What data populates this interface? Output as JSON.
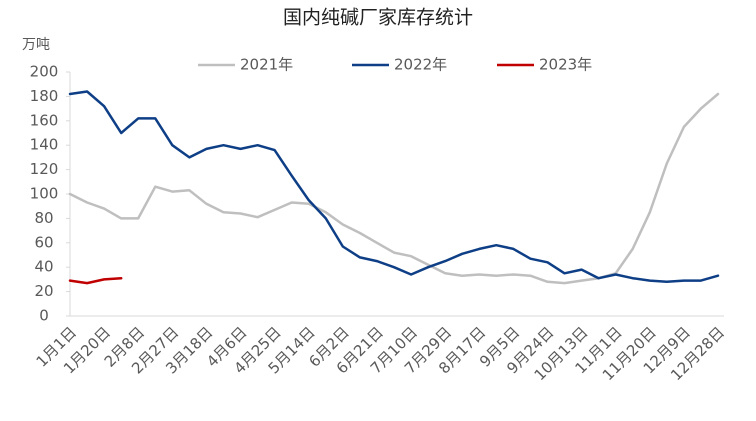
{
  "chart_data": {
    "type": "line",
    "title": "国内纯碱厂家库存统计",
    "y_label": "万吨",
    "categories": [
      "1月1日",
      null,
      "1月20日",
      null,
      "2月8日",
      null,
      "2月27日",
      null,
      "3月18日",
      null,
      "4月6日",
      null,
      "4月25日",
      null,
      "5月14日",
      null,
      "6月2日",
      null,
      "6月21日",
      null,
      "7月10日",
      null,
      "7月29日",
      null,
      "8月17日",
      null,
      "9月5日",
      null,
      "9月24日",
      null,
      "10月13日",
      null,
      "11月1日",
      null,
      "11月20日",
      null,
      "12月9日",
      null,
      "12月28日"
    ],
    "series": [
      {
        "name": "2021年",
        "color": "#bfbfbf",
        "values": [
          100,
          93,
          88,
          80,
          80,
          106,
          102,
          103,
          92,
          85,
          84,
          81,
          87,
          93,
          92,
          85,
          75,
          68,
          60,
          52,
          49,
          42,
          35,
          33,
          34,
          33,
          34,
          33,
          28,
          27,
          29,
          31,
          35,
          55,
          85,
          125,
          155,
          170,
          182
        ]
      },
      {
        "name": "2022年",
        "color": "#0e3f86",
        "values": [
          182,
          184,
          172,
          150,
          162,
          162,
          140,
          130,
          137,
          140,
          137,
          140,
          136,
          115,
          95,
          80,
          57,
          48,
          45,
          40,
          34,
          40,
          45,
          51,
          55,
          58,
          55,
          47,
          44,
          35,
          38,
          31,
          34,
          31,
          29,
          28,
          29,
          29,
          33
        ]
      },
      {
        "name": "2023年",
        "color": "#c00000",
        "values": [
          29,
          27,
          30,
          31,
          null,
          null,
          null,
          null,
          null,
          null,
          null,
          null,
          null,
          null,
          null,
          null,
          null,
          null,
          null,
          null,
          null,
          null,
          null,
          null,
          null,
          null,
          null,
          null,
          null,
          null,
          null,
          null,
          null,
          null,
          null,
          null,
          null,
          null,
          null
        ]
      }
    ],
    "ylim": [
      0,
      200
    ],
    "yticks": [
      0,
      20,
      40,
      60,
      80,
      100,
      120,
      140,
      160,
      180,
      200
    ],
    "legend": "top"
  }
}
